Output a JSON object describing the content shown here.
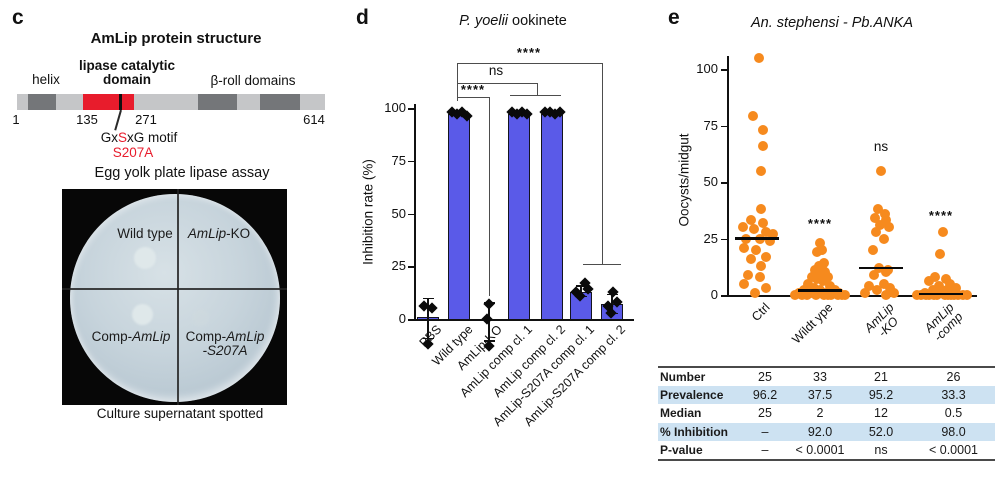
{
  "panel_c": {
    "label": "c",
    "title": "AmLip protein structure",
    "helix_label": "helix",
    "catalytic_label_line1": "lipase catalytic",
    "catalytic_label_line2": "domain",
    "beta_roll_label": "β-roll domains",
    "pos_start": "1",
    "pos_cat_start": "135",
    "pos_cat_end": "271",
    "pos_end": "614",
    "motif_pre": "Gx",
    "motif_s": "S",
    "motif_post": "xG motif",
    "mutation": "S207A",
    "assay_title": "Egg yolk plate lipase assay",
    "quadrant_top_left": "Wild type",
    "quadrant_top_right_italic": "AmLip",
    "quadrant_top_right_rest": "-KO",
    "quadrant_bottom_left_prefix": "Comp-",
    "quadrant_bottom_left_italic": "AmLip",
    "quadrant_bottom_right_prefix": "Comp-",
    "quadrant_bottom_right_italic": "AmLip",
    "quadrant_bottom_right_line2": "-S207A",
    "caption": "Culture supernatant spotted",
    "colors": {
      "domain_red": "#e81c2c",
      "bar_gray": "#c5c6c8",
      "segment_dark": "#747679"
    }
  },
  "panel_d": {
    "label": "d",
    "title_italic": "P. yoelii",
    "title_rest": " ookinete",
    "ylabel": "Inhibition rate (%)"
  },
  "panel_e": {
    "label": "e",
    "title": "An. stephensi - Pb.ANKA",
    "ylabel": "Oocysts/midgut"
  },
  "chart_data": [
    {
      "id": "d",
      "type": "bar",
      "title": "P. yoelii ookinete",
      "ylabel": "Inhibition rate (%)",
      "ylim": [
        -15,
        100
      ],
      "yticks": [
        0,
        25,
        50,
        75,
        100
      ],
      "bar_color": "#5a5ae8",
      "categories": [
        "PBS",
        "Wild type",
        "AmLip-KO",
        "AmLip comp cl. 1",
        "AmLip comp cl. 2",
        "AmLip-S207A comp cl. 1",
        "AmLip-S207A comp cl. 2"
      ],
      "values": [
        1,
        97,
        0,
        97,
        97,
        13,
        7
      ],
      "points": [
        [
          [
            6,
            -4
          ],
          [
            5,
            4
          ],
          [
            -12,
            0
          ]
        ],
        [
          [
            98,
            -7
          ],
          [
            97,
            -2
          ],
          [
            98,
            3
          ],
          [
            96,
            8
          ]
        ],
        [
          [
            7,
            0
          ],
          [
            0,
            -2
          ],
          [
            -13,
            0
          ]
        ],
        [
          [
            98,
            -7
          ],
          [
            97,
            -2
          ],
          [
            98,
            3
          ],
          [
            97,
            8
          ]
        ],
        [
          [
            98,
            -7
          ],
          [
            98,
            -2
          ],
          [
            97,
            3
          ],
          [
            98,
            8
          ]
        ],
        [
          [
            17,
            4
          ],
          [
            14,
            7
          ],
          [
            13,
            -5
          ],
          [
            11,
            -1
          ]
        ],
        [
          [
            13,
            1
          ],
          [
            8,
            5
          ],
          [
            6,
            -4
          ],
          [
            3,
            -1
          ]
        ]
      ],
      "errors": [
        [
          -9,
          10
        ],
        null,
        [
          -10,
          8
        ],
        null,
        null,
        [
          11,
          16
        ],
        [
          3,
          12
        ]
      ],
      "significance": [
        {
          "label": "****",
          "comparison": "Wild type vs AmLip-S207A comp cl. 1 & cl. 2"
        },
        {
          "label": "ns",
          "comparison": "Wild type vs AmLip comp cl. 1 & cl. 2"
        },
        {
          "label": "****",
          "comparison": "Wild type vs AmLip-KO"
        }
      ]
    },
    {
      "id": "e",
      "type": "scatter",
      "title": "An. stephensi - Pb.ANKA",
      "ylabel": "Oocysts/midgut",
      "ylim": [
        0,
        105
      ],
      "yticks": [
        0,
        25,
        50,
        75,
        100
      ],
      "point_color": "#f68a1e",
      "groups": [
        {
          "label": "Ctrl",
          "label_lines": [
            "Ctrl"
          ],
          "italic": false,
          "n": 25,
          "median": 25,
          "points": [
            [
              105,
              2
            ],
            [
              79,
              -4
            ],
            [
              73,
              6
            ],
            [
              66,
              6
            ],
            [
              55,
              4
            ],
            [
              38,
              4
            ],
            [
              33,
              -6
            ],
            [
              32,
              6
            ],
            [
              30,
              -14
            ],
            [
              29,
              -3
            ],
            [
              28,
              9
            ],
            [
              27,
              16
            ],
            [
              25,
              -11
            ],
            [
              25,
              3
            ],
            [
              24,
              13
            ],
            [
              21,
              -13
            ],
            [
              20,
              -1
            ],
            [
              17,
              9
            ],
            [
              16,
              -6
            ],
            [
              13,
              4
            ],
            [
              9,
              -9
            ],
            [
              8,
              3
            ],
            [
              5,
              -13
            ],
            [
              3,
              9
            ],
            [
              1,
              -2
            ]
          ]
        },
        {
          "label": "Wildt ype",
          "label_lines": [
            "Wildt ype"
          ],
          "italic": false,
          "n": 33,
          "median": 2,
          "points": [
            [
              23,
              0
            ],
            [
              20,
              2
            ],
            [
              19,
              -3
            ],
            [
              14,
              4
            ],
            [
              13,
              -1
            ],
            [
              12,
              2
            ],
            [
              11,
              -5
            ],
            [
              10,
              5
            ],
            [
              9,
              0
            ],
            [
              8,
              -8
            ],
            [
              8,
              8
            ],
            [
              7,
              -3
            ],
            [
              6,
              3
            ],
            [
              5,
              -12
            ],
            [
              4,
              10
            ],
            [
              3,
              -6
            ],
            [
              2,
              0
            ],
            [
              2,
              -16
            ],
            [
              2,
              15
            ],
            [
              1,
              -9
            ],
            [
              1,
              6
            ],
            [
              1,
              19
            ],
            [
              1,
              -21
            ],
            [
              0,
              -13
            ],
            [
              0,
              -4
            ],
            [
              0,
              4
            ],
            [
              0,
              11
            ],
            [
              0,
              18
            ],
            [
              0,
              -18
            ],
            [
              0,
              22
            ],
            [
              0,
              -25
            ],
            [
              0,
              8
            ],
            [
              0,
              25
            ]
          ]
        },
        {
          "label": "AmLip-KO",
          "label_lines": [
            "AmLip",
            "-KO"
          ],
          "italic": true,
          "n": 21,
          "median": 12,
          "points": [
            [
              55,
              0
            ],
            [
              38,
              -3
            ],
            [
              36,
              4
            ],
            [
              34,
              -6
            ],
            [
              33,
              5
            ],
            [
              31,
              -1
            ],
            [
              30,
              8
            ],
            [
              28,
              -5
            ],
            [
              25,
              3
            ],
            [
              20,
              -8
            ],
            [
              12,
              -2
            ],
            [
              11,
              7
            ],
            [
              10,
              5
            ],
            [
              9,
              -7
            ],
            [
              5,
              3
            ],
            [
              4,
              -12
            ],
            [
              3,
              9
            ],
            [
              2,
              -4
            ],
            [
              1,
              13
            ],
            [
              1,
              -16
            ],
            [
              0,
              5
            ]
          ]
        },
        {
          "label": "AmLip-comp",
          "label_lines": [
            "AmLip",
            "-comp"
          ],
          "italic": true,
          "n": 26,
          "median": 0.5,
          "points": [
            [
              28,
              2
            ],
            [
              18,
              -1
            ],
            [
              8,
              -6
            ],
            [
              7,
              5
            ],
            [
              6,
              -12
            ],
            [
              5,
              9
            ],
            [
              4,
              -2
            ],
            [
              3,
              15
            ],
            [
              2,
              -8
            ],
            [
              2,
              6
            ],
            [
              1,
              -16
            ],
            [
              1,
              1
            ],
            [
              1,
              11
            ],
            [
              0,
              -12
            ],
            [
              0,
              -4
            ],
            [
              0,
              4
            ],
            [
              0,
              10
            ],
            [
              0,
              17
            ],
            [
              0,
              22
            ],
            [
              0,
              -20
            ],
            [
              0,
              -7
            ],
            [
              0,
              13
            ],
            [
              0,
              -24
            ],
            [
              0,
              7
            ],
            [
              0,
              -15
            ],
            [
              0,
              26
            ]
          ]
        }
      ],
      "significance": [
        "",
        "****",
        "ns",
        "****"
      ]
    },
    {
      "id": "e-table",
      "type": "table",
      "row_labels": [
        "Number",
        "Prevalence",
        "Median",
        "% Inhibition",
        "P-value"
      ],
      "rows": [
        [
          "25",
          "33",
          "21",
          "26"
        ],
        [
          "96.2",
          "37.5",
          "95.2",
          "33.3"
        ],
        [
          "25",
          "2",
          "12",
          "0.5"
        ],
        [
          "–",
          "92.0",
          "52.0",
          "98.0"
        ],
        [
          "–",
          "< 0.0001",
          "ns",
          "< 0.0001"
        ]
      ],
      "shaded_rows": [
        1,
        3
      ],
      "shade_color": "#cde2f2"
    }
  ]
}
